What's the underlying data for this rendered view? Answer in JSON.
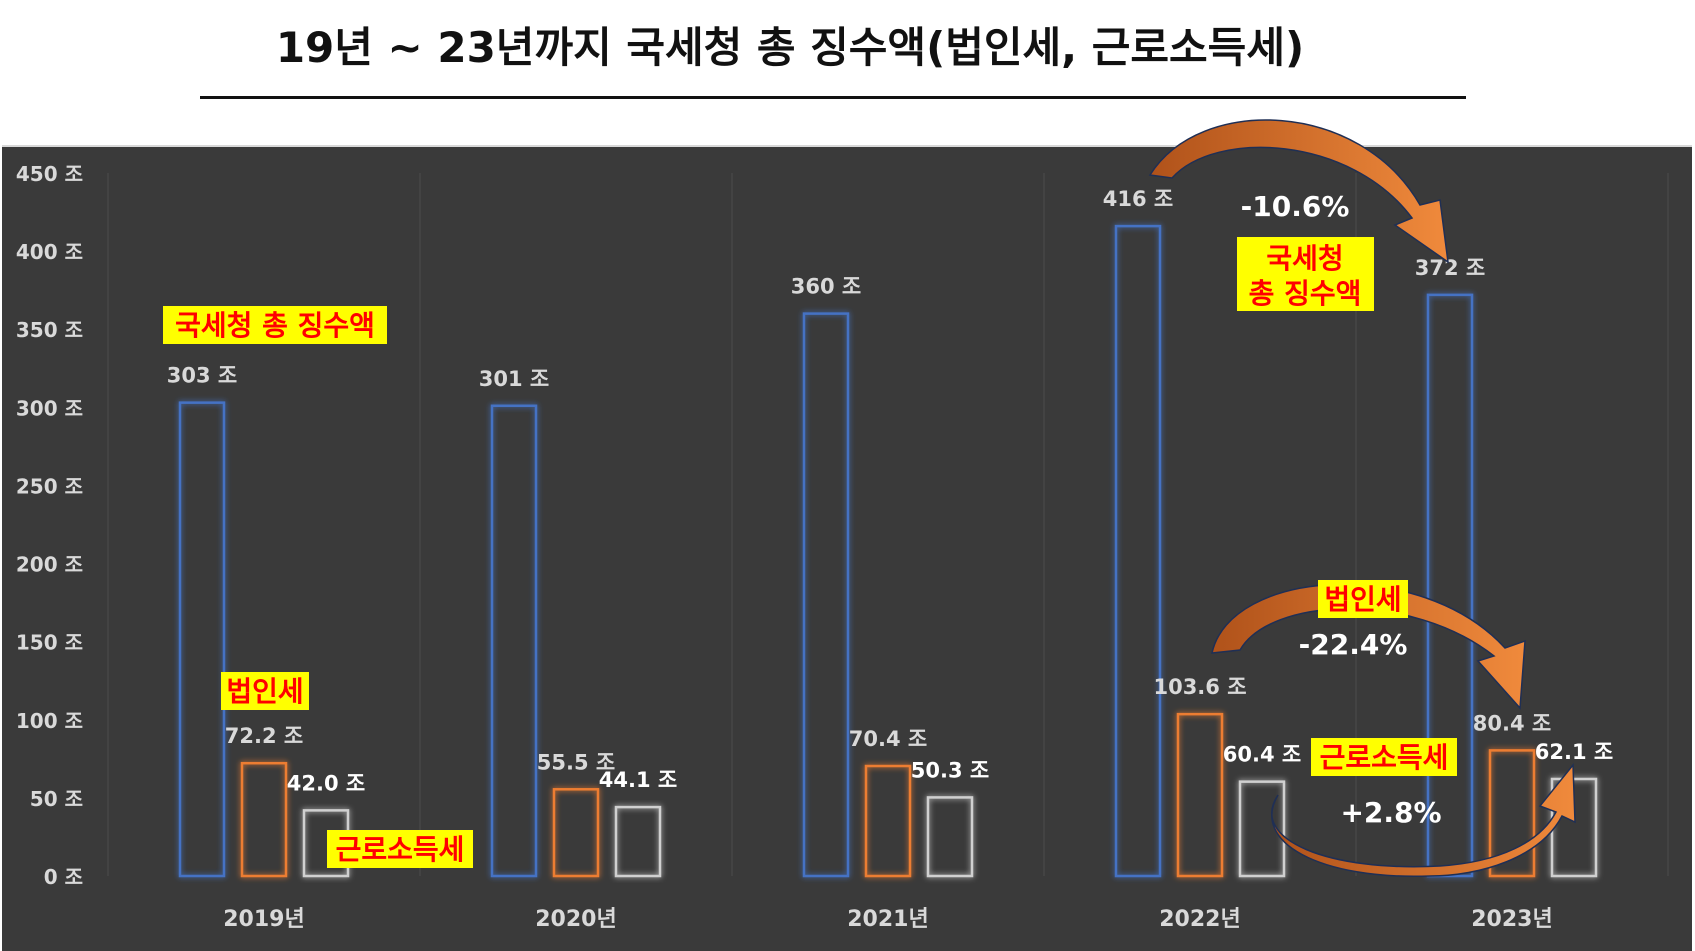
{
  "title": "19년 ~ 23년까지 국세청 총 징수액(법인세, 근로소득세)",
  "colors": {
    "total": "#4472c4",
    "corporate": "#ed7d31",
    "labor": "#d0d0d0",
    "highlight_bg": "#ffff00",
    "highlight_text": "#ff0000",
    "arrow": "#e07b32"
  },
  "chart_data": {
    "type": "bar",
    "categories": [
      "2019년",
      "2020년",
      "2021년",
      "2022년",
      "2023년"
    ],
    "series": [
      {
        "key": "total",
        "values": [
          303,
          301,
          360,
          416,
          372
        ],
        "value_labels": [
          "303 조",
          "301 조",
          "360 조",
          "416 조",
          "372 조"
        ]
      },
      {
        "key": "corporate",
        "values": [
          72.2,
          55.5,
          70.4,
          103.6,
          80.4
        ],
        "value_labels": [
          "72.2 조",
          "55.5 조",
          "70.4 조",
          "103.6 조",
          "80.4 조"
        ]
      },
      {
        "key": "labor",
        "values": [
          42.0,
          44.1,
          50.3,
          60.4,
          62.1
        ],
        "value_labels": [
          "42.0 조",
          "44.1 조",
          "50.3 조",
          "60.4 조",
          "62.1 조"
        ]
      }
    ],
    "ylim": [
      0,
      450
    ],
    "yticks": [
      0,
      50,
      100,
      150,
      200,
      250,
      300,
      350,
      400,
      450
    ],
    "ytick_labels": [
      "0 조",
      "50 조",
      "100 조",
      "150 조",
      "200 조",
      "250 조",
      "300 조",
      "350 조",
      "400 조",
      "450 조"
    ],
    "grid": "vertical"
  },
  "annotations": {
    "total_label_2019": "국세청 총 징수액",
    "corp_label_2019": "법인세",
    "labor_label_2019": "근로소득세",
    "total_label_2023_line1": "국세청",
    "total_label_2023_line2": "총 징수액",
    "corp_label_2023": "법인세",
    "labor_label_2023": "근로소득세",
    "total_change": "-10.6%",
    "corp_change": "-22.4%",
    "labor_change": "+2.8%"
  }
}
